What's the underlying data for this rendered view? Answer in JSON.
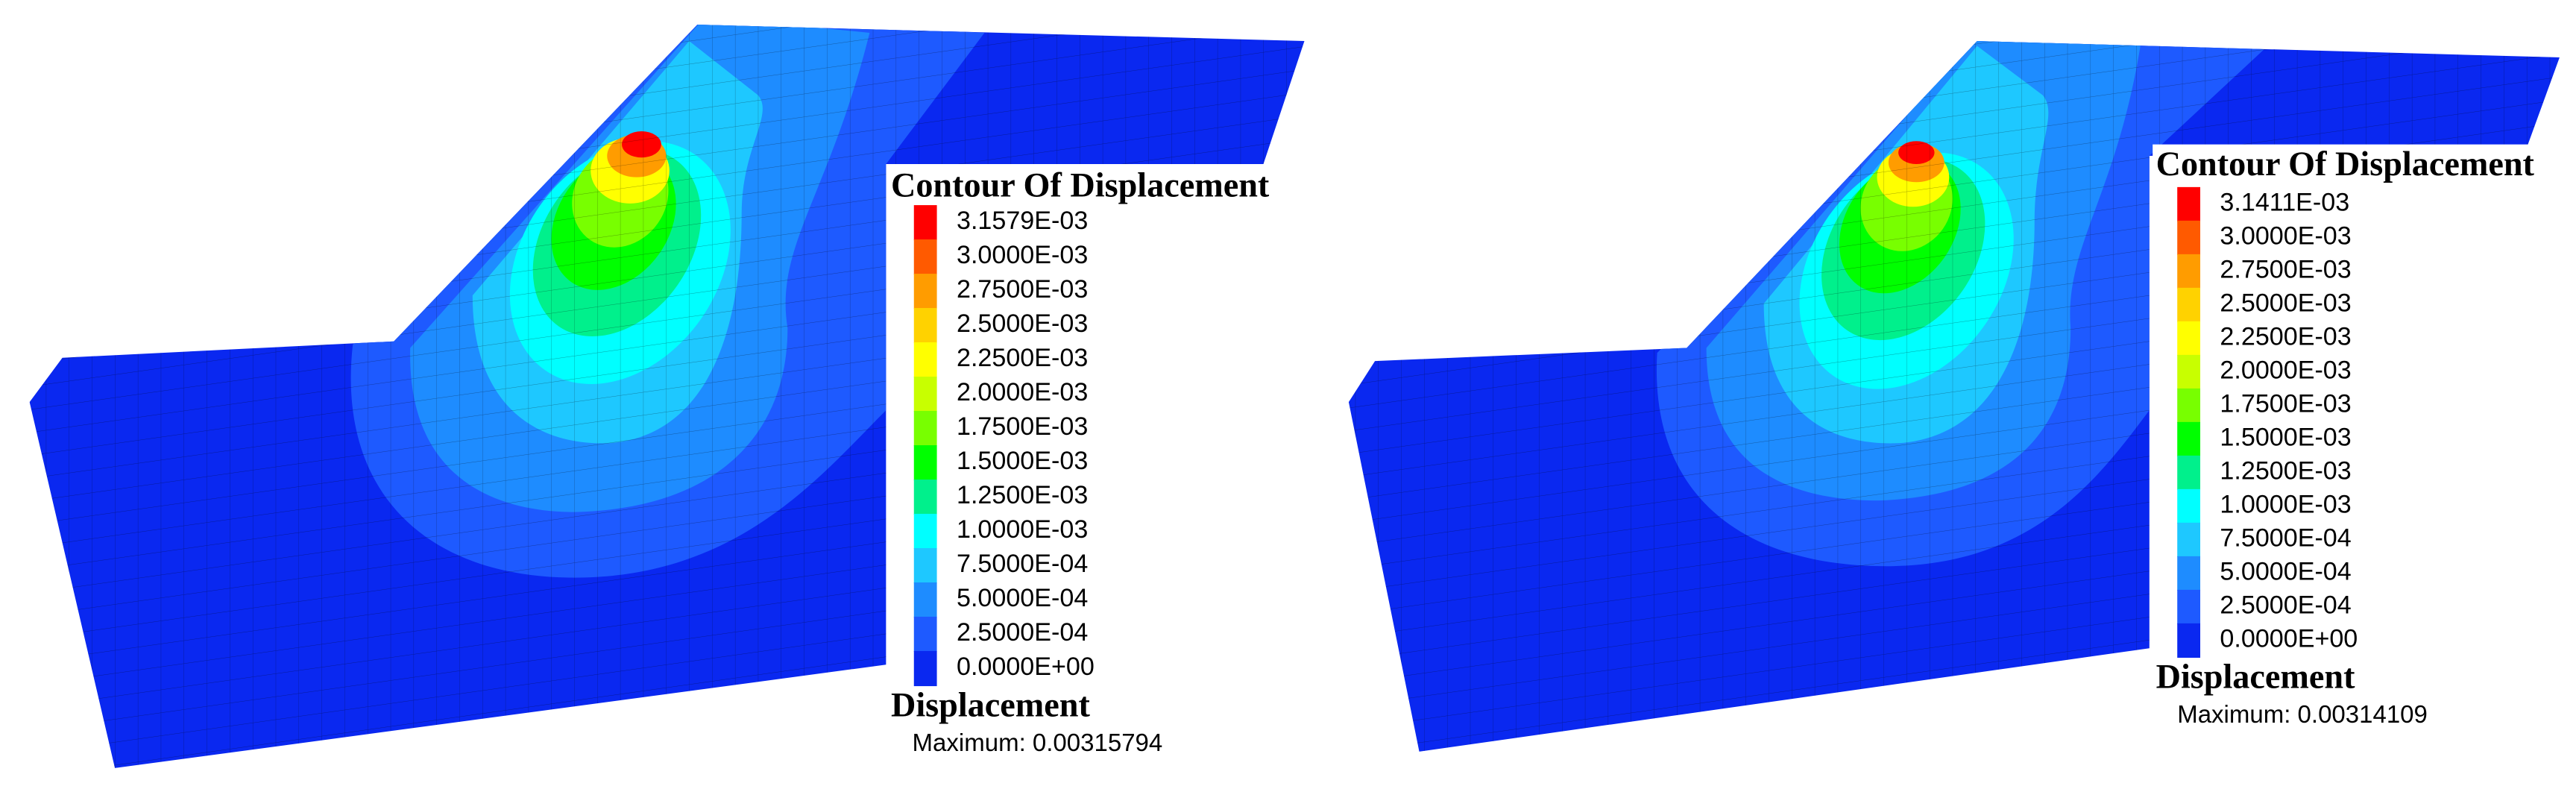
{
  "panels": [
    {
      "legend": {
        "title": "Contour Of Displacement",
        "levels": [
          {
            "label": "3.1579E-03",
            "color": "#ff0000"
          },
          {
            "label": "3.0000E-03",
            "color": "#ff5a00"
          },
          {
            "label": "2.7500E-03",
            "color": "#ff9c00"
          },
          {
            "label": "2.5000E-03",
            "color": "#ffd200"
          },
          {
            "label": "2.2500E-03",
            "color": "#ffff00"
          },
          {
            "label": "2.0000E-03",
            "color": "#c8ff00"
          },
          {
            "label": "1.7500E-03",
            "color": "#78ff00"
          },
          {
            "label": "1.5000E-03",
            "color": "#00ff00"
          },
          {
            "label": "1.2500E-03",
            "color": "#00f08c"
          },
          {
            "label": "1.0000E-03",
            "color": "#00ffff"
          },
          {
            "label": "7.5000E-04",
            "color": "#1ec8ff"
          },
          {
            "label": "5.0000E-04",
            "color": "#1e8cff"
          },
          {
            "label": "2.5000E-04",
            "color": "#1e5aff"
          },
          {
            "label": "0.0000E+00",
            "color": "#0a28f0"
          }
        ]
      },
      "quantity": "Displacement",
      "maximum": "Maximum: 0.00315794"
    },
    {
      "legend": {
        "title": "Contour Of Displacement",
        "levels": [
          {
            "label": "3.1411E-03",
            "color": "#ff0000"
          },
          {
            "label": "3.0000E-03",
            "color": "#ff5a00"
          },
          {
            "label": "2.7500E-03",
            "color": "#ff9c00"
          },
          {
            "label": "2.5000E-03",
            "color": "#ffd200"
          },
          {
            "label": "2.2500E-03",
            "color": "#ffff00"
          },
          {
            "label": "2.0000E-03",
            "color": "#c8ff00"
          },
          {
            "label": "1.7500E-03",
            "color": "#78ff00"
          },
          {
            "label": "1.5000E-03",
            "color": "#00ff00"
          },
          {
            "label": "1.2500E-03",
            "color": "#00f08c"
          },
          {
            "label": "1.0000E-03",
            "color": "#00ffff"
          },
          {
            "label": "7.5000E-04",
            "color": "#1ec8ff"
          },
          {
            "label": "5.0000E-04",
            "color": "#1e8cff"
          },
          {
            "label": "2.5000E-04",
            "color": "#1e5aff"
          },
          {
            "label": "0.0000E+00",
            "color": "#0a28f0"
          }
        ]
      },
      "quantity": "Displacement",
      "maximum": "Maximum: 0.00314109"
    }
  ]
}
